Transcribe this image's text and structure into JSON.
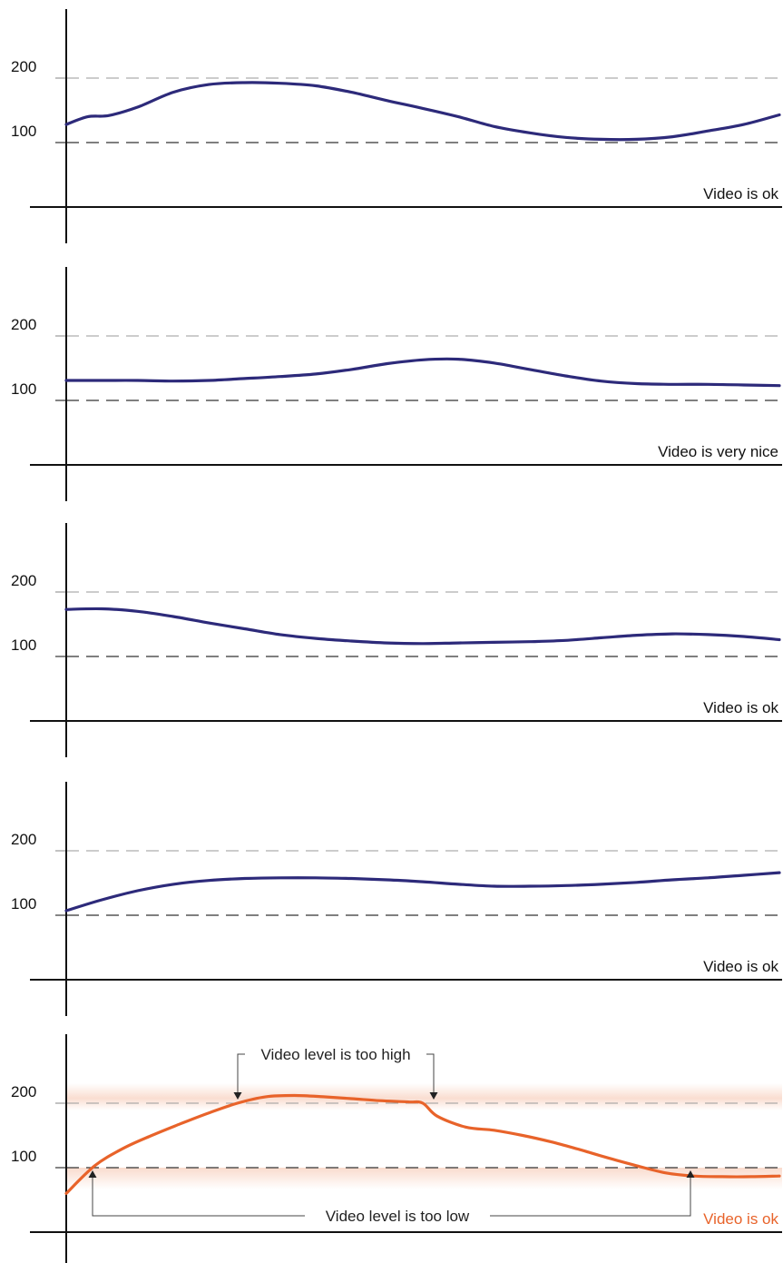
{
  "colors": {
    "series": "#2d2a7a",
    "alert": "#e8632a",
    "axis": "#111111",
    "grid_200": "#9a9a9a",
    "grid_100": "#333333",
    "band": "#f8d2c1"
  },
  "chart_data": [
    {
      "type": "line",
      "yticks": [
        100,
        200
      ],
      "ylim": [
        -60,
        300
      ],
      "grid": "dashed at 100 and 200",
      "x": [
        0,
        0.03,
        0.06,
        0.1,
        0.15,
        0.2,
        0.25,
        0.3,
        0.35,
        0.4,
        0.45,
        0.5,
        0.55,
        0.6,
        0.65,
        0.7,
        0.75,
        0.8,
        0.85,
        0.9,
        0.95,
        1.0
      ],
      "series": [
        {
          "values": [
            128,
            140,
            142,
            155,
            178,
            190,
            193,
            192,
            188,
            178,
            165,
            153,
            140,
            125,
            115,
            108,
            105,
            105,
            109,
            118,
            128,
            143
          ]
        }
      ],
      "status": "Video is ok",
      "status_color": "#111111"
    },
    {
      "type": "line",
      "yticks": [
        100,
        200
      ],
      "ylim": [
        -60,
        300
      ],
      "grid": "dashed at 100 and 200",
      "x": [
        0,
        0.05,
        0.1,
        0.15,
        0.2,
        0.25,
        0.3,
        0.35,
        0.4,
        0.45,
        0.5,
        0.55,
        0.6,
        0.65,
        0.7,
        0.75,
        0.8,
        0.85,
        0.9,
        0.95,
        1.0
      ],
      "series": [
        {
          "values": [
            131,
            131,
            131,
            130,
            131,
            134,
            137,
            141,
            148,
            157,
            163,
            164,
            158,
            148,
            138,
            130,
            126,
            125,
            125,
            124,
            123
          ]
        }
      ],
      "status": "Video is very nice",
      "status_color": "#111111"
    },
    {
      "type": "line",
      "yticks": [
        100,
        200
      ],
      "ylim": [
        -60,
        300
      ],
      "grid": "dashed at 100 and 200",
      "x": [
        0,
        0.05,
        0.1,
        0.15,
        0.2,
        0.25,
        0.3,
        0.35,
        0.4,
        0.45,
        0.5,
        0.55,
        0.6,
        0.65,
        0.7,
        0.75,
        0.8,
        0.85,
        0.9,
        0.95,
        1.0
      ],
      "series": [
        {
          "values": [
            173,
            174,
            170,
            162,
            152,
            143,
            134,
            128,
            124,
            121,
            120,
            121,
            122,
            123,
            125,
            129,
            133,
            135,
            134,
            131,
            126
          ]
        }
      ],
      "status": "Video is ok",
      "status_color": "#111111"
    },
    {
      "type": "line",
      "yticks": [
        100,
        200
      ],
      "ylim": [
        -60,
        300
      ],
      "grid": "dashed at 100 and 200",
      "x": [
        0,
        0.05,
        0.1,
        0.15,
        0.2,
        0.25,
        0.3,
        0.35,
        0.4,
        0.45,
        0.5,
        0.55,
        0.6,
        0.65,
        0.7,
        0.75,
        0.8,
        0.85,
        0.9,
        0.95,
        1.0
      ],
      "series": [
        {
          "values": [
            107,
            124,
            138,
            148,
            154,
            157,
            158,
            158,
            157,
            155,
            152,
            148,
            145,
            145,
            146,
            148,
            151,
            155,
            158,
            162,
            166
          ]
        }
      ],
      "status": "Video is ok",
      "status_color": "#111111"
    },
    {
      "type": "line",
      "yticks": [
        100,
        200
      ],
      "ylim": [
        -60,
        300
      ],
      "grid": "dashed at 100 and 200",
      "x": [
        0,
        0.04,
        0.08,
        0.12,
        0.16,
        0.2,
        0.24,
        0.28,
        0.32,
        0.36,
        0.4,
        0.44,
        0.48,
        0.5,
        0.52,
        0.56,
        0.6,
        0.64,
        0.68,
        0.72,
        0.76,
        0.8,
        0.84,
        0.88,
        0.92,
        0.96,
        1.0
      ],
      "series": [
        {
          "values": [
            60,
            103,
            130,
            150,
            168,
            185,
            200,
            210,
            212,
            210,
            207,
            204,
            202,
            200,
            180,
            163,
            158,
            150,
            140,
            128,
            115,
            103,
            92,
            87,
            86,
            86,
            87
          ]
        }
      ],
      "status": "Video is ok",
      "status_color": "#e8632a",
      "annotations": [
        {
          "text": "Video level is too high",
          "band_value": 200
        },
        {
          "text": "Video level is too low",
          "band_value": 100
        }
      ]
    }
  ]
}
